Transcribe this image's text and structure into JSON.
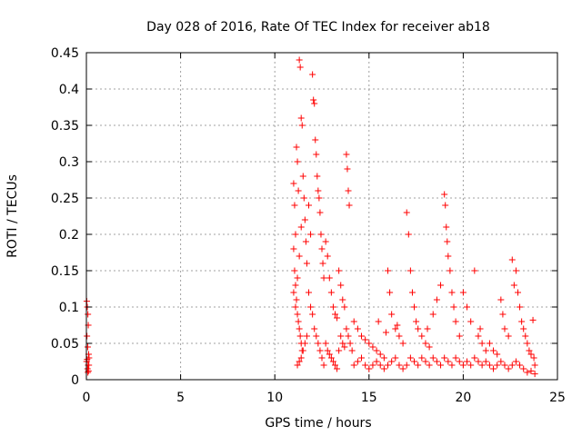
{
  "chart_data": {
    "type": "scatter",
    "title": "Day 028 of 2016, Rate Of TEC Index for receiver ab18",
    "xlabel": "GPS time / hours",
    "ylabel": "ROTI / TECUs",
    "xlim": [
      0,
      25
    ],
    "ylim": [
      0,
      0.45
    ],
    "x_ticks": [
      "0",
      "5",
      "10",
      "15",
      "20",
      "25"
    ],
    "y_ticks": [
      "0",
      "0.05",
      "0.1",
      "0.15",
      "0.2",
      "0.25",
      "0.3",
      "0.35",
      "0.4",
      "0.45"
    ],
    "grid": true,
    "marker": "plus",
    "color": "#ff0000",
    "series": [
      {
        "points": [
          [
            0.02,
            0.108
          ],
          [
            0.05,
            0.1
          ],
          [
            0.08,
            0.09
          ],
          [
            0.1,
            0.075
          ],
          [
            0.03,
            0.06
          ],
          [
            0.07,
            0.045
          ],
          [
            0.12,
            0.035
          ],
          [
            0.04,
            0.028
          ],
          [
            0.09,
            0.02
          ],
          [
            0.06,
            0.015
          ],
          [
            0.11,
            0.012
          ],
          [
            0.01,
            0.025
          ],
          [
            0.14,
            0.03
          ],
          [
            0.13,
            0.02
          ],
          [
            0.08,
            0.01
          ],
          [
            11.0,
            0.27
          ],
          [
            11.05,
            0.24
          ],
          [
            11.1,
            0.2
          ],
          [
            11.15,
            0.32
          ],
          [
            11.2,
            0.3
          ],
          [
            11.25,
            0.26
          ],
          [
            11.3,
            0.44
          ],
          [
            11.35,
            0.43
          ],
          [
            11.4,
            0.36
          ],
          [
            11.45,
            0.35
          ],
          [
            11.5,
            0.28
          ],
          [
            11.55,
            0.25
          ],
          [
            11.6,
            0.22
          ],
          [
            11.65,
            0.19
          ],
          [
            11.7,
            0.16
          ],
          [
            11.0,
            0.18
          ],
          [
            11.05,
            0.15
          ],
          [
            11.1,
            0.13
          ],
          [
            11.15,
            0.11
          ],
          [
            11.2,
            0.09
          ],
          [
            11.25,
            0.08
          ],
          [
            11.3,
            0.07
          ],
          [
            11.35,
            0.06
          ],
          [
            11.4,
            0.05
          ],
          [
            11.45,
            0.04
          ],
          [
            11.0,
            0.12
          ],
          [
            11.1,
            0.1
          ],
          [
            11.2,
            0.14
          ],
          [
            11.3,
            0.17
          ],
          [
            11.4,
            0.21
          ],
          [
            11.8,
            0.24
          ],
          [
            11.9,
            0.2
          ],
          [
            12.0,
            0.42
          ],
          [
            12.05,
            0.385
          ],
          [
            12.1,
            0.38
          ],
          [
            12.15,
            0.33
          ],
          [
            12.2,
            0.31
          ],
          [
            12.25,
            0.28
          ],
          [
            12.3,
            0.26
          ],
          [
            12.35,
            0.25
          ],
          [
            12.4,
            0.23
          ],
          [
            12.45,
            0.2
          ],
          [
            12.5,
            0.18
          ],
          [
            12.55,
            0.16
          ],
          [
            12.6,
            0.14
          ],
          [
            11.8,
            0.12
          ],
          [
            11.9,
            0.1
          ],
          [
            12.0,
            0.09
          ],
          [
            12.1,
            0.07
          ],
          [
            12.2,
            0.06
          ],
          [
            12.3,
            0.05
          ],
          [
            12.4,
            0.04
          ],
          [
            12.5,
            0.03
          ],
          [
            12.6,
            0.02
          ],
          [
            11.7,
            0.06
          ],
          [
            11.6,
            0.05
          ],
          [
            11.5,
            0.04
          ],
          [
            11.4,
            0.03
          ],
          [
            11.3,
            0.025
          ],
          [
            11.2,
            0.02
          ],
          [
            12.7,
            0.19
          ],
          [
            12.8,
            0.17
          ],
          [
            12.9,
            0.14
          ],
          [
            13.0,
            0.12
          ],
          [
            13.1,
            0.1
          ],
          [
            13.2,
            0.09
          ],
          [
            13.3,
            0.085
          ],
          [
            13.4,
            0.15
          ],
          [
            13.5,
            0.13
          ],
          [
            13.6,
            0.11
          ],
          [
            13.7,
            0.1
          ],
          [
            13.8,
            0.31
          ],
          [
            13.85,
            0.29
          ],
          [
            13.9,
            0.26
          ],
          [
            13.95,
            0.24
          ],
          [
            12.7,
            0.05
          ],
          [
            12.8,
            0.04
          ],
          [
            12.9,
            0.035
          ],
          [
            13.0,
            0.03
          ],
          [
            13.1,
            0.025
          ],
          [
            13.2,
            0.02
          ],
          [
            13.3,
            0.015
          ],
          [
            13.4,
            0.04
          ],
          [
            13.5,
            0.06
          ],
          [
            13.6,
            0.05
          ],
          [
            13.7,
            0.045
          ],
          [
            13.8,
            0.07
          ],
          [
            13.9,
            0.06
          ],
          [
            14.0,
            0.05
          ],
          [
            14.1,
            0.04
          ],
          [
            14.2,
            0.08
          ],
          [
            14.4,
            0.07
          ],
          [
            14.6,
            0.06
          ],
          [
            14.8,
            0.055
          ],
          [
            15.0,
            0.05
          ],
          [
            15.2,
            0.045
          ],
          [
            15.4,
            0.04
          ],
          [
            15.6,
            0.035
          ],
          [
            15.8,
            0.03
          ],
          [
            16.0,
            0.15
          ],
          [
            16.1,
            0.12
          ],
          [
            16.2,
            0.09
          ],
          [
            16.4,
            0.07
          ],
          [
            16.6,
            0.06
          ],
          [
            16.8,
            0.05
          ],
          [
            14.2,
            0.02
          ],
          [
            14.4,
            0.025
          ],
          [
            14.6,
            0.03
          ],
          [
            14.8,
            0.02
          ],
          [
            15.0,
            0.015
          ],
          [
            15.2,
            0.02
          ],
          [
            15.4,
            0.025
          ],
          [
            15.6,
            0.02
          ],
          [
            15.8,
            0.015
          ],
          [
            16.0,
            0.02
          ],
          [
            16.2,
            0.025
          ],
          [
            16.4,
            0.03
          ],
          [
            16.6,
            0.02
          ],
          [
            16.8,
            0.015
          ],
          [
            17.0,
            0.02
          ],
          [
            17.0,
            0.23
          ],
          [
            17.1,
            0.2
          ],
          [
            17.2,
            0.15
          ],
          [
            17.3,
            0.12
          ],
          [
            17.4,
            0.1
          ],
          [
            17.5,
            0.08
          ],
          [
            17.6,
            0.07
          ],
          [
            17.8,
            0.06
          ],
          [
            18.0,
            0.05
          ],
          [
            18.2,
            0.045
          ],
          [
            18.4,
            0.09
          ],
          [
            18.6,
            0.11
          ],
          [
            18.8,
            0.13
          ],
          [
            19.0,
            0.255
          ],
          [
            19.05,
            0.24
          ],
          [
            19.1,
            0.21
          ],
          [
            19.15,
            0.19
          ],
          [
            19.2,
            0.17
          ],
          [
            19.3,
            0.15
          ],
          [
            19.4,
            0.12
          ],
          [
            19.5,
            0.1
          ],
          [
            19.6,
            0.08
          ],
          [
            19.8,
            0.06
          ],
          [
            20.0,
            0.12
          ],
          [
            20.2,
            0.1
          ],
          [
            20.4,
            0.08
          ],
          [
            20.6,
            0.15
          ],
          [
            20.8,
            0.06
          ],
          [
            21.0,
            0.05
          ],
          [
            21.2,
            0.04
          ],
          [
            17.2,
            0.03
          ],
          [
            17.4,
            0.025
          ],
          [
            17.6,
            0.02
          ],
          [
            17.8,
            0.03
          ],
          [
            18.0,
            0.025
          ],
          [
            18.2,
            0.02
          ],
          [
            18.4,
            0.03
          ],
          [
            18.6,
            0.025
          ],
          [
            18.8,
            0.02
          ],
          [
            19.0,
            0.03
          ],
          [
            19.2,
            0.025
          ],
          [
            19.4,
            0.02
          ],
          [
            19.6,
            0.03
          ],
          [
            19.8,
            0.025
          ],
          [
            20.0,
            0.02
          ],
          [
            21.4,
            0.05
          ],
          [
            21.6,
            0.04
          ],
          [
            21.8,
            0.035
          ],
          [
            22.0,
            0.11
          ],
          [
            22.1,
            0.09
          ],
          [
            22.2,
            0.07
          ],
          [
            22.4,
            0.06
          ],
          [
            22.6,
            0.165
          ],
          [
            22.7,
            0.13
          ],
          [
            22.8,
            0.15
          ],
          [
            22.9,
            0.12
          ],
          [
            23.0,
            0.1
          ],
          [
            23.1,
            0.08
          ],
          [
            23.2,
            0.07
          ],
          [
            23.3,
            0.06
          ],
          [
            20.2,
            0.025
          ],
          [
            20.4,
            0.02
          ],
          [
            20.6,
            0.03
          ],
          [
            20.8,
            0.025
          ],
          [
            21.0,
            0.02
          ],
          [
            21.2,
            0.025
          ],
          [
            21.4,
            0.02
          ],
          [
            21.6,
            0.015
          ],
          [
            21.8,
            0.02
          ],
          [
            22.0,
            0.025
          ],
          [
            22.2,
            0.02
          ],
          [
            22.4,
            0.015
          ],
          [
            22.6,
            0.02
          ],
          [
            22.8,
            0.025
          ],
          [
            23.0,
            0.02
          ],
          [
            23.4,
            0.05
          ],
          [
            23.5,
            0.04
          ],
          [
            23.6,
            0.035
          ],
          [
            23.7,
            0.082
          ],
          [
            23.75,
            0.03
          ],
          [
            23.8,
            0.02
          ],
          [
            23.2,
            0.015
          ],
          [
            23.4,
            0.01
          ],
          [
            23.6,
            0.012
          ],
          [
            23.8,
            0.008
          ],
          [
            15.5,
            0.08
          ],
          [
            15.9,
            0.065
          ],
          [
            16.5,
            0.075
          ],
          [
            18.1,
            0.07
          ],
          [
            20.9,
            0.07
          ]
        ]
      }
    ]
  }
}
